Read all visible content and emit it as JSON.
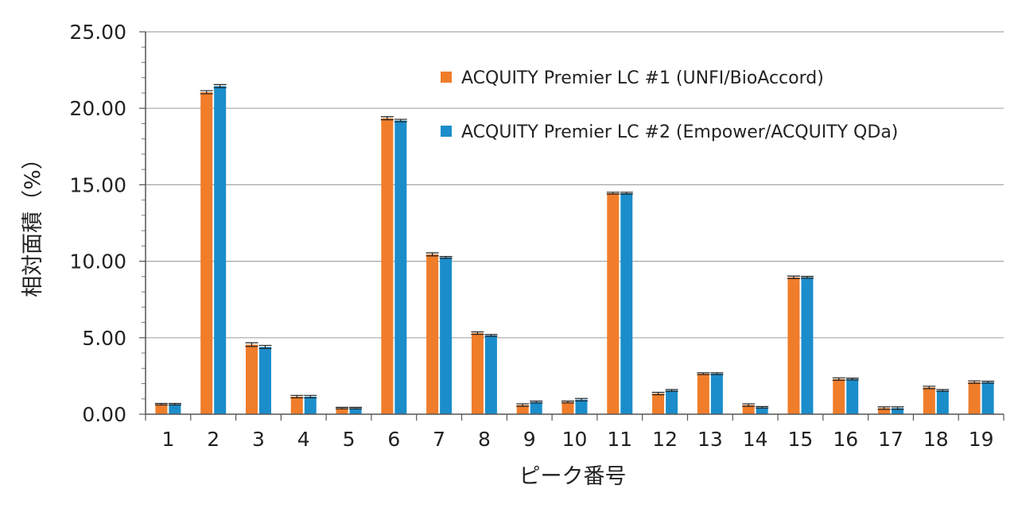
{
  "chart_data": {
    "type": "bar",
    "xlabel": "ピーク番号",
    "ylabel": "相対面積（%）",
    "ylim": [
      0,
      25
    ],
    "yticks": [
      "0.00",
      "5.00",
      "10.00",
      "15.00",
      "20.00",
      "25.00"
    ],
    "ytick_values": [
      0,
      5,
      10,
      15,
      20,
      25
    ],
    "grid": true,
    "legend_position": "top-right",
    "categories": [
      "1",
      "2",
      "3",
      "4",
      "5",
      "6",
      "7",
      "8",
      "9",
      "10",
      "11",
      "12",
      "13",
      "14",
      "15",
      "16",
      "17",
      "18",
      "19"
    ],
    "series": [
      {
        "name": "ACQUITY Premier LC #1 (UNFI/BioAccord)",
        "color": "#F07D2A",
        "values": [
          0.65,
          21.05,
          4.55,
          1.15,
          0.4,
          19.35,
          10.45,
          5.3,
          0.6,
          0.8,
          14.45,
          1.35,
          2.65,
          0.6,
          8.95,
          2.3,
          0.4,
          1.75,
          2.1
        ],
        "error": [
          0.05,
          0.1,
          0.12,
          0.08,
          0.05,
          0.1,
          0.1,
          0.08,
          0.08,
          0.06,
          0.06,
          0.08,
          0.06,
          0.08,
          0.08,
          0.08,
          0.08,
          0.08,
          0.08
        ]
      },
      {
        "name": "ACQUITY Premier LC #2 (Empower/ACQUITY QDa)",
        "color": "#1B8DCB",
        "values": [
          0.65,
          21.45,
          4.4,
          1.15,
          0.4,
          19.2,
          10.25,
          5.15,
          0.8,
          0.95,
          14.45,
          1.55,
          2.65,
          0.45,
          8.95,
          2.3,
          0.4,
          1.55,
          2.1
        ],
        "error": [
          0.05,
          0.1,
          0.1,
          0.08,
          0.05,
          0.08,
          0.06,
          0.06,
          0.06,
          0.08,
          0.06,
          0.06,
          0.06,
          0.05,
          0.06,
          0.06,
          0.08,
          0.06,
          0.06
        ]
      }
    ]
  }
}
